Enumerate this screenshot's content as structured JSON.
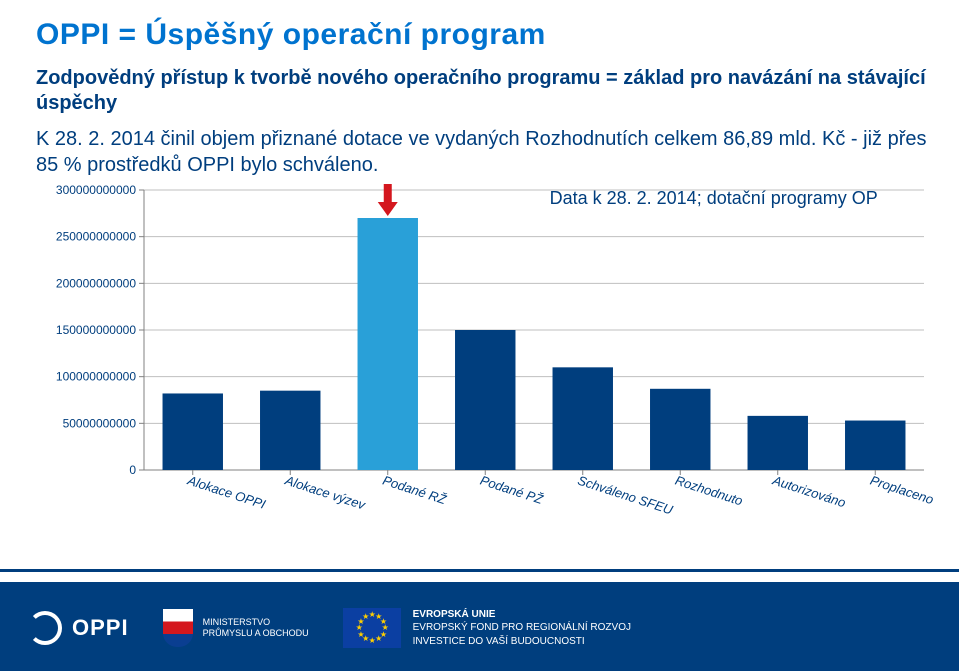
{
  "title": "OPPI = Úspěšný operační program",
  "subtitle": "Zodpovědný přístup k tvorbě nového operačního programu = základ pro navázání na stávající úspěchy",
  "paragraph": "K 28. 2. 2014 činil objem přiznané dotace ve vydaných Rozhodnutích celkem 86,89 mld. Kč - již přes 85 % prostředků OPPI bylo schváleno.",
  "chart_note": "Data k 28. 2. 2014; dotační programy OP",
  "chart": {
    "type": "bar",
    "categories": [
      "Alokace OPPI",
      "Alokace výzev",
      "Podané RŽ",
      "Podané PŽ",
      "Schváleno SFEU",
      "Rozhodnuto",
      "Autorizováno",
      "Proplaceno"
    ],
    "values": [
      82000000000,
      85000000000,
      270000000000,
      150000000000,
      110000000000,
      87000000000,
      58000000000,
      53000000000
    ],
    "bar_colors": [
      "#003e7e",
      "#003e7e",
      "#29a0d8",
      "#003e7e",
      "#003e7e",
      "#003e7e",
      "#003e7e",
      "#003e7e"
    ],
    "ylim": [
      0,
      300000000000
    ],
    "ytick_step": 50000000000,
    "ytick_labels": [
      "0",
      "50000000000",
      "100000000000",
      "150000000000",
      "200000000000",
      "250000000000",
      "300000000000"
    ],
    "plot_bg": "#ffffff",
    "grid_color": "#bfbfbf",
    "axis_color": "#808080",
    "label_fontsize": 12,
    "cat_label_fontsize": 13,
    "bar_width_ratio": 0.62,
    "arrow_color": "#d4171e",
    "arrow_target_index": 2
  },
  "footer": {
    "brand": "OPPI",
    "ministry_line1": "MINISTERSTVO",
    "ministry_line2": "PRŮMYSLU A OBCHODU",
    "eu_line1": "EVROPSKÁ UNIE",
    "eu_line2": "EVROPSKÝ FOND PRO REGIONÁLNÍ ROZVOJ",
    "eu_line3": "INVESTICE DO VAŠÍ BUDOUCNOSTI"
  }
}
